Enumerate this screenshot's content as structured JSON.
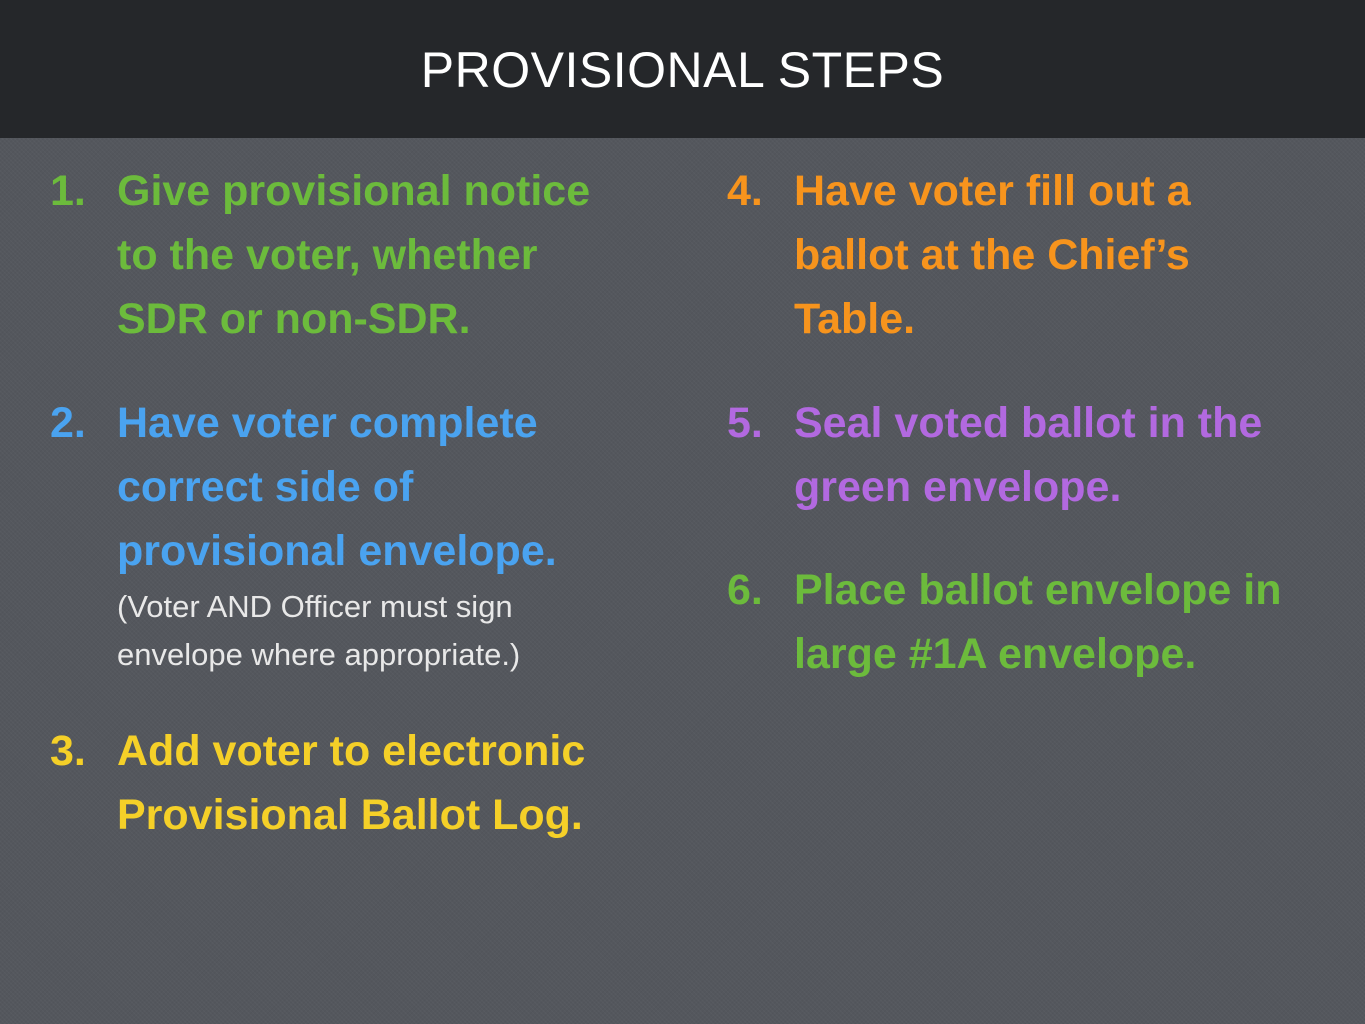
{
  "title": "PROVISIONAL STEPS",
  "colors": {
    "background": "#54575d",
    "title_bar": "#25272a",
    "green": "#6cbb3c",
    "blue": "#4aa3f0",
    "yellow": "#f5d028",
    "orange": "#f7941d",
    "purple": "#b269e0",
    "note": "#e8e8e8"
  },
  "steps": [
    {
      "number": "1.",
      "lines": [
        "Give provisional notice",
        "to the voter, whether",
        "SDR or non-SDR."
      ],
      "color": "#6cbb3c"
    },
    {
      "number": "2.",
      "lines": [
        "Have voter complete",
        "correct side of",
        "provisional envelope."
      ],
      "note_lines": [
        "(Voter AND Officer must sign",
        "envelope where appropriate.)"
      ],
      "color": "#4aa3f0"
    },
    {
      "number": "3.",
      "lines": [
        "Add voter to electronic",
        "Provisional Ballot Log."
      ],
      "color": "#f5d028"
    },
    {
      "number": "4.",
      "lines": [
        "Have voter fill out a",
        "ballot at the Chief’s",
        "Table."
      ],
      "color": "#f7941d"
    },
    {
      "number": "5.",
      "lines": [
        "Seal voted ballot in the",
        "green envelope."
      ],
      "color": "#b269e0"
    },
    {
      "number": "6.",
      "lines": [
        "Place ballot envelope in",
        "large #1A envelope."
      ],
      "color": "#6cbb3c"
    }
  ]
}
